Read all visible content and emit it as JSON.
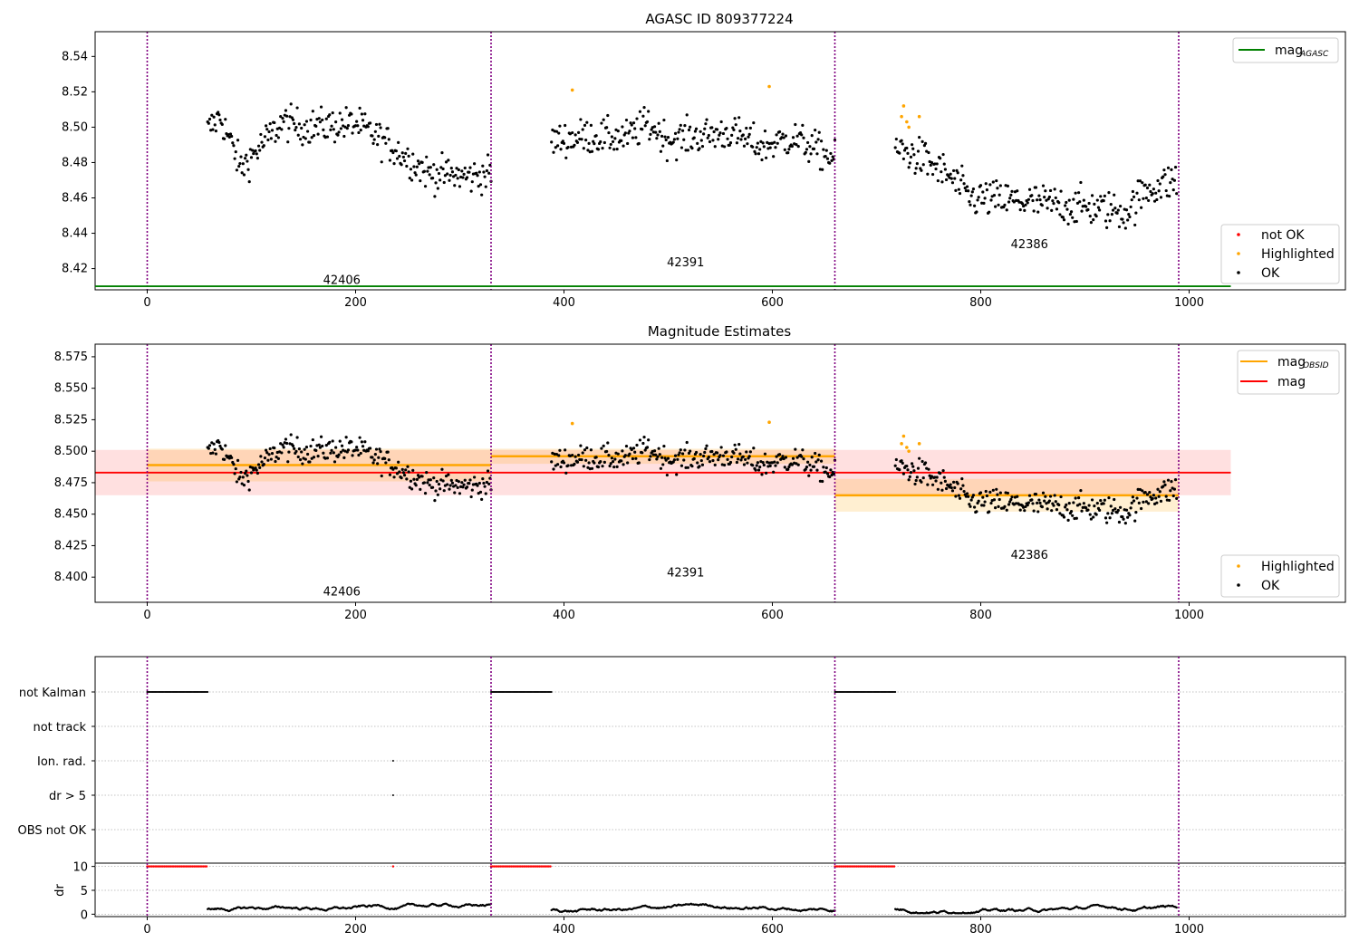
{
  "chart_data": [
    {
      "type": "scatter",
      "title": "AGASC ID 809377224",
      "xlim": [
        -50,
        1150
      ],
      "ylim": [
        8.408,
        8.554
      ],
      "x_ticks": [
        0,
        200,
        400,
        600,
        800,
        1000
      ],
      "y_ticks": [
        8.42,
        8.44,
        8.46,
        8.48,
        8.5,
        8.52,
        8.54
      ],
      "reference_lines": [
        {
          "name": "mag",
          "name_subscript": "AGASC",
          "y": 8.41,
          "x": [
            -50,
            1040
          ],
          "color": "#008000"
        }
      ],
      "obsid_boundaries": [
        0,
        330,
        660,
        990
      ],
      "obsid_labels": [
        {
          "text": "42406",
          "x": 165,
          "y": 8.414
        },
        {
          "text": "42391",
          "x": 495,
          "y": 8.424
        },
        {
          "text": "42386",
          "x": 825,
          "y": 8.434
        }
      ],
      "legend": [
        {
          "label": "not OK",
          "color": "#ff0000"
        },
        {
          "label": "Highlighted",
          "color": "#ffa500"
        },
        {
          "label": "OK",
          "color": "#000000"
        }
      ],
      "highlighted_points": [
        {
          "x": 408,
          "y": 8.521
        },
        {
          "x": 597,
          "y": 8.523
        },
        {
          "x": 726,
          "y": 8.512
        },
        {
          "x": 724,
          "y": 8.506
        },
        {
          "x": 729,
          "y": 8.503
        },
        {
          "x": 731,
          "y": 8.5
        },
        {
          "x": 741,
          "y": 8.506
        }
      ],
      "series": [
        {
          "name": "OK",
          "color": "#000000",
          "segments": [
            {
              "x_start": 58,
              "x_end": 330,
              "trend": [
                [
                  58,
                  8.498
                ],
                [
                  70,
                  8.506
                ],
                [
                  90,
                  8.477
                ],
                [
                  130,
                  8.503
                ],
                [
                  150,
                  8.5
                ],
                [
                  200,
                  8.502
                ],
                [
                  230,
                  8.491
                ],
                [
                  270,
                  8.474
                ],
                [
                  310,
                  8.472
                ],
                [
                  330,
                  8.474
                ]
              ],
              "noise": 0.0055
            },
            {
              "x_start": 388,
              "x_end": 660,
              "trend": [
                [
                  388,
                  8.492
                ],
                [
                  420,
                  8.495
                ],
                [
                  460,
                  8.494
                ],
                [
                  480,
                  8.502
                ],
                [
                  500,
                  8.493
                ],
                [
                  560,
                  8.497
                ],
                [
                  590,
                  8.489
                ],
                [
                  620,
                  8.494
                ],
                [
                  660,
                  8.482
                ]
              ],
              "noise": 0.0055
            },
            {
              "x_start": 718,
              "x_end": 988,
              "trend": [
                [
                  718,
                  8.488
                ],
                [
                  745,
                  8.482
                ],
                [
                  770,
                  8.472
                ],
                [
                  790,
                  8.46
                ],
                [
                  840,
                  8.458
                ],
                [
                  900,
                  8.455
                ],
                [
                  940,
                  8.452
                ],
                [
                  960,
                  8.465
                ],
                [
                  988,
                  8.47
                ]
              ],
              "noise": 0.006
            }
          ]
        }
      ]
    },
    {
      "type": "scatter",
      "title": "Magnitude Estimates",
      "xlim": [
        -50,
        1150
      ],
      "ylim": [
        8.38,
        8.585
      ],
      "x_ticks": [
        0,
        200,
        400,
        600,
        800,
        1000
      ],
      "y_ticks": [
        8.4,
        8.425,
        8.45,
        8.475,
        8.5,
        8.525,
        8.55,
        8.575
      ],
      "reference_lines": [
        {
          "name": "mag",
          "y": 8.483,
          "x": [
            -50,
            1040
          ],
          "band": [
            8.465,
            8.501
          ],
          "color": "#ff0000"
        }
      ],
      "obsid_means": [
        {
          "name": "mag",
          "name_subscript": "OBSID",
          "x": [
            0,
            330
          ],
          "y": 8.489,
          "band": [
            8.476,
            8.502
          ],
          "color": "#ffa500"
        },
        {
          "x": [
            330,
            660
          ],
          "y": 8.496,
          "band": [
            8.49,
            8.502
          ],
          "color": "#ffa500"
        },
        {
          "x": [
            660,
            990
          ],
          "y": 8.465,
          "band": [
            8.452,
            8.478
          ],
          "color": "#ffa500"
        }
      ],
      "obsid_boundaries": [
        0,
        330,
        660,
        990
      ],
      "obsid_labels": [
        {
          "text": "42406",
          "x": 165,
          "y": 8.389
        },
        {
          "text": "42391",
          "x": 495,
          "y": 8.404
        },
        {
          "text": "42386",
          "x": 825,
          "y": 8.418
        }
      ],
      "legend_lines": [
        {
          "label": "mag",
          "label_subscript": "OBSID",
          "color": "#ffa500"
        },
        {
          "label": "mag",
          "color": "#ff0000"
        }
      ],
      "legend_points": [
        {
          "label": "Highlighted",
          "color": "#ffa500"
        },
        {
          "label": "OK",
          "color": "#000000"
        }
      ],
      "highlighted_points": [
        {
          "x": 408,
          "y": 8.522
        },
        {
          "x": 597,
          "y": 8.523
        },
        {
          "x": 726,
          "y": 8.512
        },
        {
          "x": 724,
          "y": 8.506
        },
        {
          "x": 729,
          "y": 8.503
        },
        {
          "x": 731,
          "y": 8.5
        },
        {
          "x": 741,
          "y": 8.506
        }
      ]
    },
    {
      "type": "scatter",
      "xlim": [
        -50,
        1150
      ],
      "flag_rows": [
        "not Kalman",
        "not track",
        "Ion. rad.",
        "dr > 5",
        "OBS not OK"
      ],
      "flags": {
        "not Kalman": [
          [
            0,
            58
          ],
          [
            330,
            388
          ],
          [
            660,
            718
          ]
        ],
        "Ion. rad.": [
          [
            236,
            236
          ]
        ],
        "dr > 5": [
          [
            236,
            236
          ]
        ]
      },
      "dr_axis": {
        "ylabel": "dr",
        "ylim": [
          -0.5,
          10.5
        ],
        "y_ticks": [
          0,
          5,
          10
        ],
        "clipped_value": 10,
        "clipped_ranges": [
          [
            0,
            58
          ],
          [
            236,
            236
          ],
          [
            330,
            388
          ],
          [
            660,
            718
          ]
        ],
        "segments": [
          [
            58,
            330
          ],
          [
            388,
            660
          ],
          [
            718,
            988
          ]
        ],
        "typical_range": [
          0.2,
          2.2
        ]
      }
    }
  ]
}
